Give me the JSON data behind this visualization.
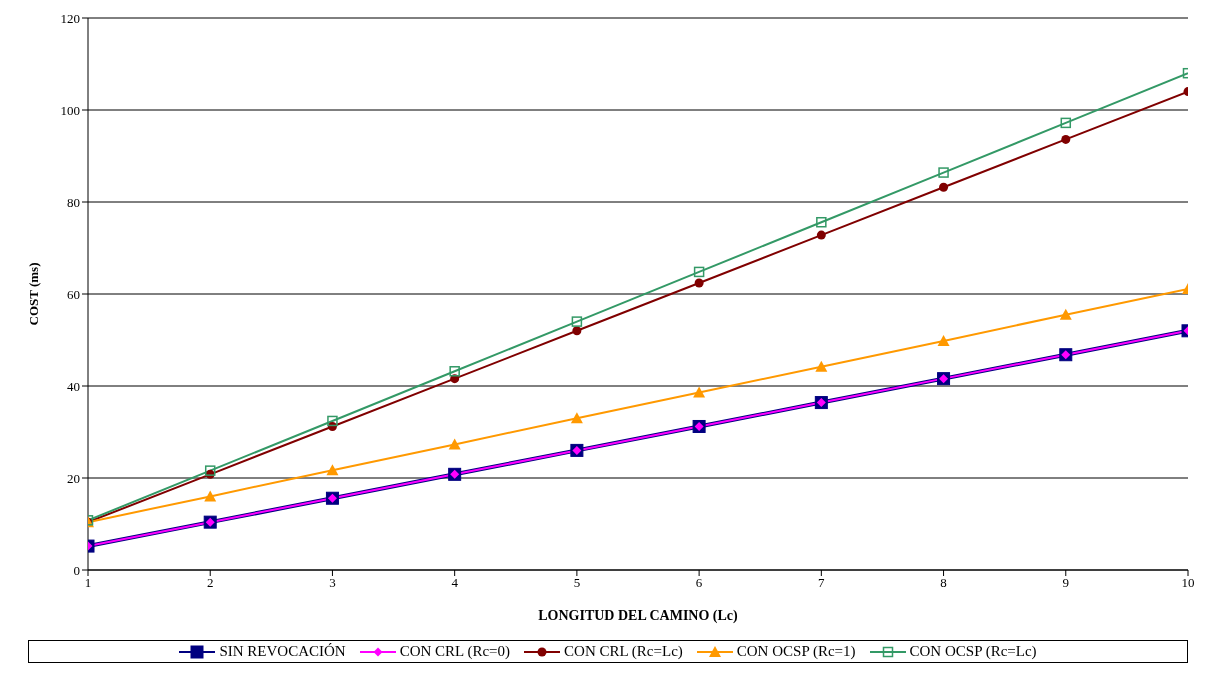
{
  "chart_data": {
    "type": "line",
    "xlabel": "LONGITUD DEL CAMINO (Lc)",
    "ylabel": "COST (ms)",
    "x": [
      1,
      2,
      3,
      4,
      5,
      6,
      7,
      8,
      9,
      10
    ],
    "xlim": [
      1,
      10
    ],
    "xticks": [
      1,
      2,
      3,
      4,
      5,
      6,
      7,
      8,
      9,
      10
    ],
    "ylim": [
      0,
      120
    ],
    "yticks": [
      0,
      20,
      40,
      60,
      80,
      100,
      120
    ],
    "grid": "y",
    "legend": "bottom",
    "series": [
      {
        "name": "SIN REVOCACIÓN",
        "color": "#000080",
        "marker": "square",
        "values": [
          5.2,
          10.4,
          15.6,
          20.8,
          26,
          31.2,
          36.4,
          41.6,
          46.8,
          52
        ]
      },
      {
        "name": "CON CRL (Rc=0)",
        "color": "#ff00ff",
        "marker": "diamond",
        "values": [
          5.2,
          10.4,
          15.6,
          20.8,
          26,
          31.2,
          36.4,
          41.6,
          46.8,
          52
        ]
      },
      {
        "name": "CON CRL (Rc=Lc)",
        "color": "#800000",
        "marker": "circle",
        "values": [
          10.4,
          20.8,
          31.2,
          41.6,
          52,
          62.4,
          72.8,
          83.2,
          93.6,
          104
        ]
      },
      {
        "name": "CON OCSP (Rc=1)",
        "color": "#ff9900",
        "marker": "triangle",
        "values": [
          10.4,
          16,
          21.7,
          27.3,
          33,
          38.6,
          44.2,
          49.8,
          55.5,
          61.1
        ]
      },
      {
        "name": "CON OCSP (Rc=Lc)",
        "color": "#339966",
        "marker": "square",
        "values": [
          10.8,
          21.6,
          32.4,
          43.2,
          54,
          64.8,
          75.6,
          86.4,
          97.2,
          108
        ]
      }
    ]
  }
}
